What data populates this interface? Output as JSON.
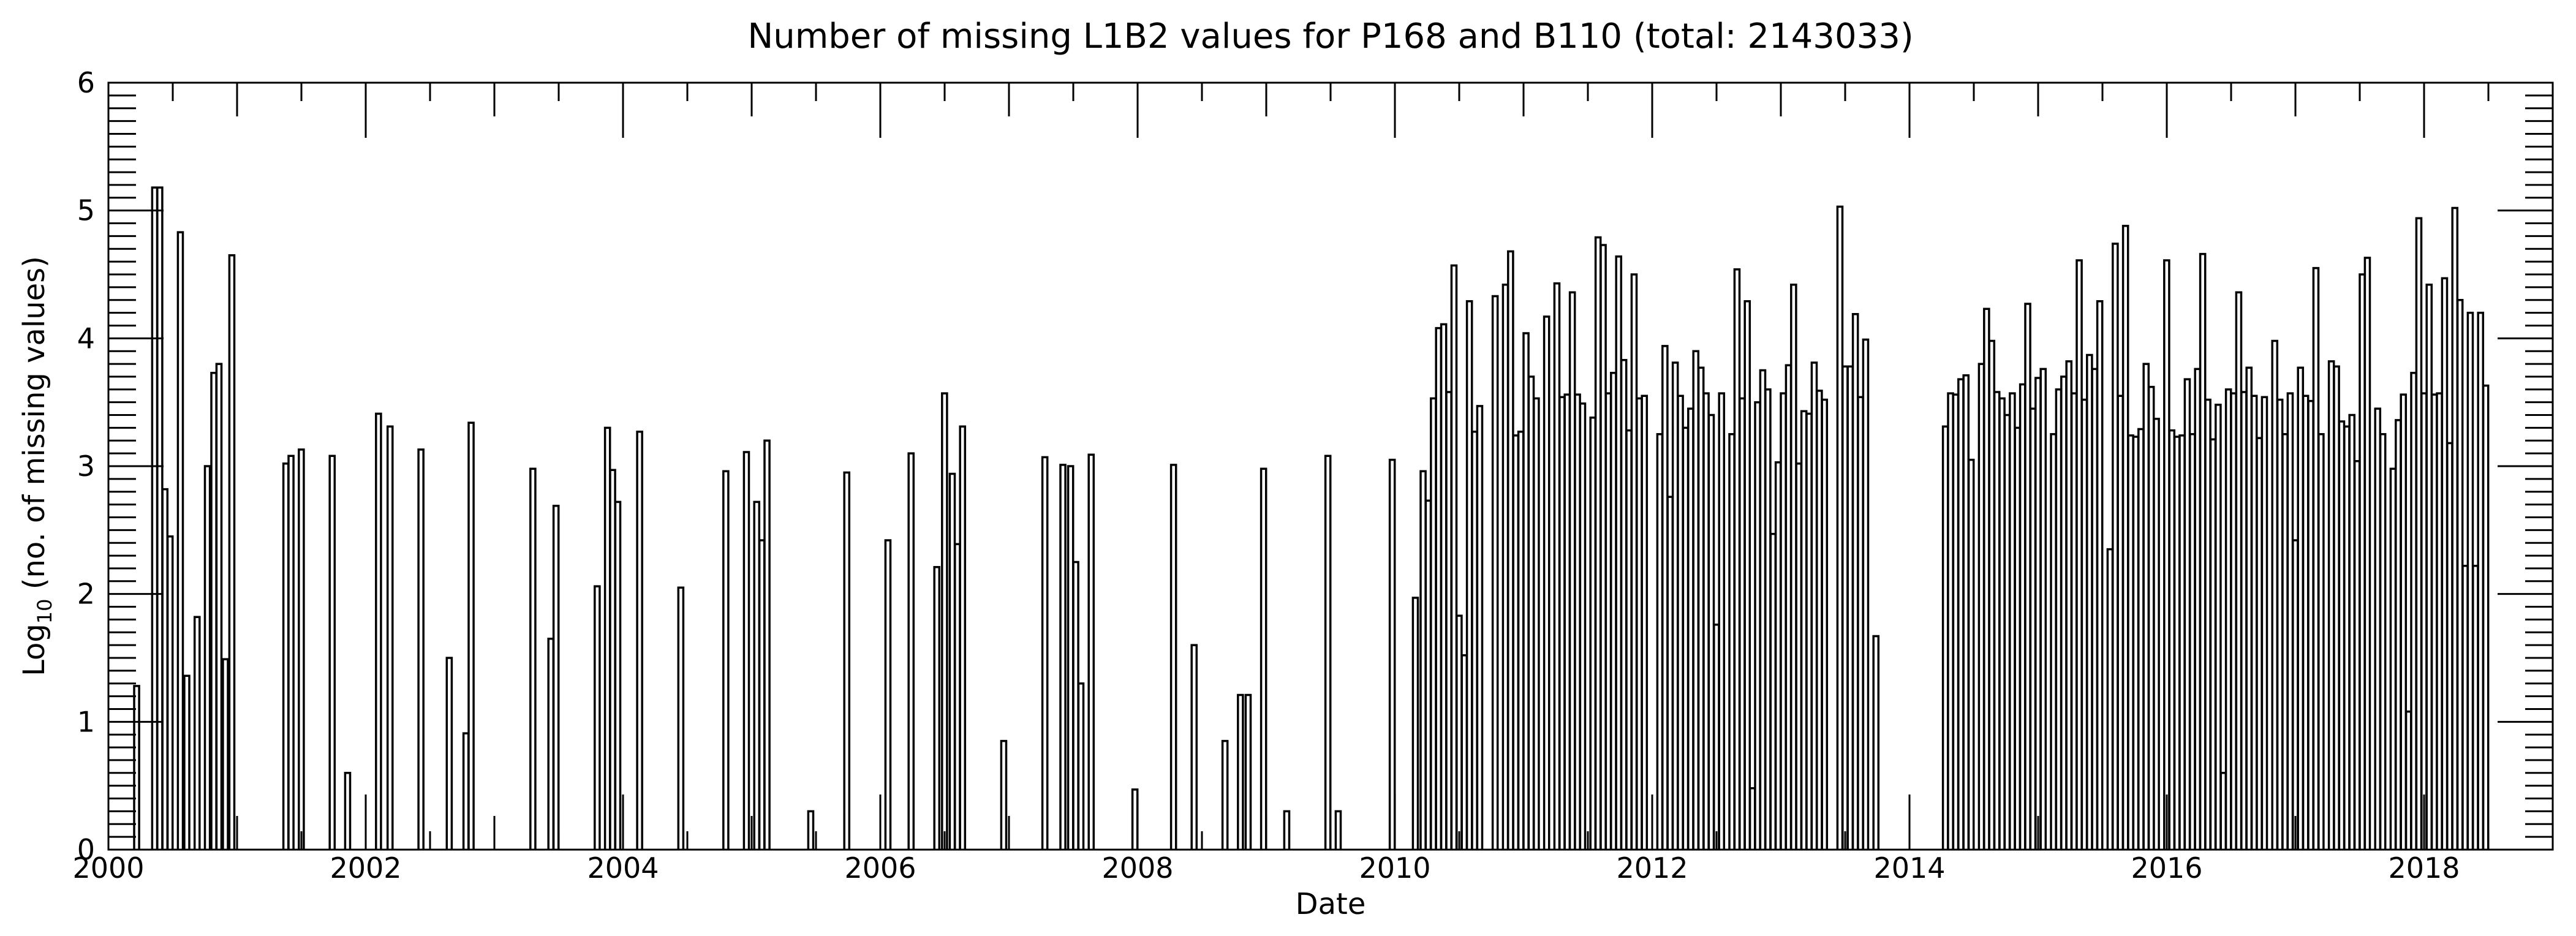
{
  "chart_data": {
    "type": "line",
    "style": "step histogram",
    "title": "Number of missing L1B2 values for P168 and B110 (total: 2143033)",
    "xlabel": "Date",
    "ylabel": "Log10 (no. of missing values)",
    "ylabel_parts": {
      "base": "Log",
      "sub": "10",
      "rest": " (no. of missing values)"
    },
    "xlim": [
      2000,
      2019
    ],
    "ylim": [
      0,
      6
    ],
    "x_ticks": [
      "2000",
      "2002",
      "2004",
      "2006",
      "2008",
      "2010",
      "2012",
      "2014",
      "2016",
      "2018"
    ],
    "y_ticks": [
      "0",
      "1",
      "2",
      "3",
      "4",
      "5",
      "6"
    ],
    "grid": false,
    "line_color": "#000000",
    "bin_width_years": 0.0385,
    "series": [
      {
        "bins": [
          [
            2000.2,
            1.28
          ],
          [
            2000.34,
            5.18
          ],
          [
            2000.38,
            5.18
          ],
          [
            2000.42,
            2.82
          ],
          [
            2000.46,
            2.45
          ],
          [
            2000.54,
            4.83
          ],
          [
            2000.59,
            1.36
          ],
          [
            2000.67,
            1.82
          ],
          [
            2000.75,
            3.0
          ],
          [
            2000.8,
            3.73
          ],
          [
            2000.84,
            3.8
          ],
          [
            2000.89,
            1.49
          ],
          [
            2000.94,
            4.65
          ],
          [
            2001.36,
            3.02
          ],
          [
            2001.4,
            3.08
          ],
          [
            2001.48,
            3.13
          ],
          [
            2001.72,
            3.08
          ],
          [
            2001.84,
            0.6
          ],
          [
            2002.08,
            3.41
          ],
          [
            2002.17,
            3.31
          ],
          [
            2002.41,
            3.13
          ],
          [
            2002.63,
            1.5
          ],
          [
            2002.76,
            0.91
          ],
          [
            2002.8,
            3.34
          ],
          [
            2003.28,
            2.98
          ],
          [
            2003.42,
            1.65
          ],
          [
            2003.46,
            2.69
          ],
          [
            2003.78,
            2.06
          ],
          [
            2003.86,
            3.3
          ],
          [
            2003.9,
            2.97
          ],
          [
            2003.94,
            2.72
          ],
          [
            2004.11,
            3.27
          ],
          [
            2004.43,
            2.05
          ],
          [
            2004.78,
            2.96
          ],
          [
            2004.94,
            3.11
          ],
          [
            2005.02,
            2.72
          ],
          [
            2005.06,
            2.42
          ],
          [
            2005.1,
            3.2
          ],
          [
            2005.44,
            0.3
          ],
          [
            2005.72,
            2.95
          ],
          [
            2006.04,
            2.42
          ],
          [
            2006.22,
            3.1
          ],
          [
            2006.42,
            2.21
          ],
          [
            2006.48,
            3.57
          ],
          [
            2006.54,
            2.94
          ],
          [
            2006.58,
            2.39
          ],
          [
            2006.62,
            3.31
          ],
          [
            2006.94,
            0.85
          ],
          [
            2007.26,
            3.07
          ],
          [
            2007.4,
            3.01
          ],
          [
            2007.46,
            3.0
          ],
          [
            2007.5,
            2.25
          ],
          [
            2007.54,
            1.3
          ],
          [
            2007.62,
            3.09
          ],
          [
            2007.96,
            0.47
          ],
          [
            2008.26,
            3.01
          ],
          [
            2008.42,
            1.6
          ],
          [
            2008.66,
            0.85
          ],
          [
            2008.78,
            1.21
          ],
          [
            2008.84,
            1.21
          ],
          [
            2008.96,
            2.98
          ],
          [
            2009.14,
            0.3
          ],
          [
            2009.46,
            3.08
          ],
          [
            2009.54,
            0.3
          ],
          [
            2009.96,
            3.05
          ],
          [
            2010.14,
            1.97
          ],
          [
            2010.2,
            2.96
          ],
          [
            2010.24,
            2.73
          ],
          [
            2010.28,
            3.53
          ],
          [
            2010.32,
            4.08
          ],
          [
            2010.36,
            4.11
          ],
          [
            2010.4,
            3.58
          ],
          [
            2010.44,
            4.57
          ],
          [
            2010.48,
            1.83
          ],
          [
            2010.52,
            1.52
          ],
          [
            2010.56,
            4.29
          ],
          [
            2010.6,
            3.27
          ],
          [
            2010.64,
            3.47
          ],
          [
            2010.76,
            4.33
          ],
          [
            2010.84,
            4.42
          ],
          [
            2010.88,
            4.68
          ],
          [
            2010.92,
            3.24
          ],
          [
            2010.96,
            3.27
          ],
          [
            2011.0,
            4.04
          ],
          [
            2011.04,
            3.7
          ],
          [
            2011.08,
            3.53
          ],
          [
            2011.16,
            4.17
          ],
          [
            2011.24,
            4.43
          ],
          [
            2011.28,
            3.54
          ],
          [
            2011.32,
            3.56
          ],
          [
            2011.36,
            4.36
          ],
          [
            2011.4,
            3.56
          ],
          [
            2011.44,
            3.49
          ],
          [
            2011.52,
            3.38
          ],
          [
            2011.56,
            4.79
          ],
          [
            2011.6,
            4.73
          ],
          [
            2011.64,
            3.57
          ],
          [
            2011.68,
            3.73
          ],
          [
            2011.72,
            4.64
          ],
          [
            2011.76,
            3.83
          ],
          [
            2011.8,
            3.28
          ],
          [
            2011.84,
            4.5
          ],
          [
            2011.88,
            3.53
          ],
          [
            2011.92,
            3.55
          ],
          [
            2012.04,
            3.25
          ],
          [
            2012.08,
            3.94
          ],
          [
            2012.12,
            2.76
          ],
          [
            2012.16,
            3.81
          ],
          [
            2012.2,
            3.55
          ],
          [
            2012.24,
            3.3
          ],
          [
            2012.28,
            3.45
          ],
          [
            2012.32,
            3.9
          ],
          [
            2012.36,
            3.77
          ],
          [
            2012.4,
            3.57
          ],
          [
            2012.44,
            3.4
          ],
          [
            2012.48,
            1.76
          ],
          [
            2012.52,
            3.57
          ],
          [
            2012.6,
            3.25
          ],
          [
            2012.64,
            4.54
          ],
          [
            2012.68,
            3.53
          ],
          [
            2012.72,
            4.29
          ],
          [
            2012.76,
            0.48
          ],
          [
            2012.8,
            3.5
          ],
          [
            2012.84,
            3.75
          ],
          [
            2012.88,
            3.6
          ],
          [
            2012.92,
            2.47
          ],
          [
            2012.96,
            3.03
          ],
          [
            2013.0,
            3.57
          ],
          [
            2013.04,
            3.79
          ],
          [
            2013.08,
            4.42
          ],
          [
            2013.12,
            3.02
          ],
          [
            2013.16,
            3.43
          ],
          [
            2013.2,
            3.41
          ],
          [
            2013.24,
            3.81
          ],
          [
            2013.28,
            3.59
          ],
          [
            2013.32,
            3.52
          ],
          [
            2013.44,
            5.03
          ],
          [
            2013.48,
            3.78
          ],
          [
            2013.52,
            3.78
          ],
          [
            2013.56,
            4.19
          ],
          [
            2013.6,
            3.54
          ],
          [
            2013.64,
            3.99
          ],
          [
            2013.72,
            1.67
          ],
          [
            2014.26,
            3.31
          ],
          [
            2014.3,
            3.57
          ],
          [
            2014.34,
            3.56
          ],
          [
            2014.38,
            3.68
          ],
          [
            2014.42,
            3.71
          ],
          [
            2014.46,
            3.05
          ],
          [
            2014.54,
            3.8
          ],
          [
            2014.58,
            4.23
          ],
          [
            2014.62,
            3.98
          ],
          [
            2014.66,
            3.58
          ],
          [
            2014.7,
            3.53
          ],
          [
            2014.74,
            3.4
          ],
          [
            2014.78,
            3.57
          ],
          [
            2014.82,
            3.3
          ],
          [
            2014.86,
            3.64
          ],
          [
            2014.9,
            4.27
          ],
          [
            2014.94,
            3.45
          ],
          [
            2014.98,
            3.69
          ],
          [
            2015.02,
            3.76
          ],
          [
            2015.1,
            3.25
          ],
          [
            2015.14,
            3.6
          ],
          [
            2015.18,
            3.7
          ],
          [
            2015.22,
            3.82
          ],
          [
            2015.26,
            3.57
          ],
          [
            2015.3,
            4.61
          ],
          [
            2015.34,
            3.52
          ],
          [
            2015.38,
            3.87
          ],
          [
            2015.42,
            3.76
          ],
          [
            2015.46,
            4.29
          ],
          [
            2015.54,
            2.35
          ],
          [
            2015.58,
            4.74
          ],
          [
            2015.62,
            3.55
          ],
          [
            2015.66,
            4.88
          ],
          [
            2015.7,
            3.24
          ],
          [
            2015.74,
            3.23
          ],
          [
            2015.78,
            3.29
          ],
          [
            2015.82,
            3.8
          ],
          [
            2015.86,
            3.62
          ],
          [
            2015.9,
            3.37
          ],
          [
            2015.98,
            4.61
          ],
          [
            2016.02,
            3.28
          ],
          [
            2016.06,
            3.23
          ],
          [
            2016.1,
            3.24
          ],
          [
            2016.14,
            3.68
          ],
          [
            2016.18,
            3.25
          ],
          [
            2016.22,
            3.76
          ],
          [
            2016.26,
            4.66
          ],
          [
            2016.3,
            3.52
          ],
          [
            2016.34,
            3.21
          ],
          [
            2016.38,
            3.48
          ],
          [
            2016.42,
            0.6
          ],
          [
            2016.46,
            3.6
          ],
          [
            2016.5,
            3.57
          ],
          [
            2016.54,
            4.36
          ],
          [
            2016.58,
            3.58
          ],
          [
            2016.62,
            3.77
          ],
          [
            2016.66,
            3.55
          ],
          [
            2016.7,
            3.22
          ],
          [
            2016.74,
            3.54
          ],
          [
            2016.82,
            3.98
          ],
          [
            2016.86,
            3.52
          ],
          [
            2016.9,
            3.25
          ],
          [
            2016.94,
            3.57
          ],
          [
            2016.98,
            2.42
          ],
          [
            2017.02,
            3.77
          ],
          [
            2017.06,
            3.55
          ],
          [
            2017.1,
            3.51
          ],
          [
            2017.14,
            4.55
          ],
          [
            2017.18,
            3.25
          ],
          [
            2017.26,
            3.82
          ],
          [
            2017.3,
            3.78
          ],
          [
            2017.34,
            3.35
          ],
          [
            2017.38,
            3.31
          ],
          [
            2017.42,
            3.4
          ],
          [
            2017.46,
            3.04
          ],
          [
            2017.5,
            4.5
          ],
          [
            2017.54,
            4.63
          ],
          [
            2017.62,
            3.45
          ],
          [
            2017.66,
            3.25
          ],
          [
            2017.74,
            2.98
          ],
          [
            2017.78,
            3.36
          ],
          [
            2017.82,
            3.56
          ],
          [
            2017.86,
            1.08
          ],
          [
            2017.9,
            3.73
          ],
          [
            2017.94,
            4.94
          ],
          [
            2017.98,
            3.57
          ],
          [
            2018.02,
            4.42
          ],
          [
            2018.06,
            3.56
          ],
          [
            2018.1,
            3.57
          ],
          [
            2018.14,
            4.47
          ],
          [
            2018.18,
            3.18
          ],
          [
            2018.22,
            5.02
          ],
          [
            2018.26,
            4.3
          ],
          [
            2018.3,
            2.22
          ],
          [
            2018.34,
            4.2
          ],
          [
            2018.38,
            2.22
          ],
          [
            2018.42,
            4.2
          ],
          [
            2018.46,
            3.63
          ]
        ]
      }
    ]
  }
}
